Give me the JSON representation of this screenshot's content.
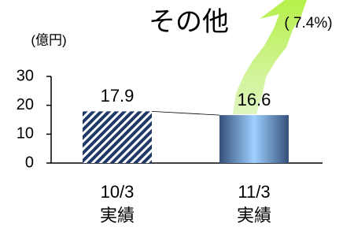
{
  "chart_data": {
    "type": "bar",
    "title": "その他",
    "annotation": "( 7.4%)",
    "unit": "(億円)",
    "categories": [
      [
        "10/3",
        "実績"
      ],
      [
        "11/3",
        "実績"
      ]
    ],
    "values": [
      17.9,
      16.6
    ],
    "ylim": [
      0,
      30
    ],
    "yticks": [
      0,
      10,
      20,
      30
    ],
    "grid": false
  }
}
